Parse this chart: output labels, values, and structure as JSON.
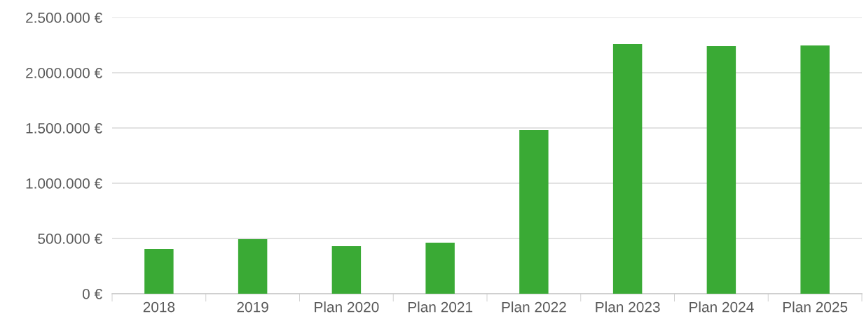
{
  "chart_data": {
    "type": "bar",
    "categories": [
      "2018",
      "2019",
      "Plan 2020",
      "Plan 2021",
      "Plan 2022",
      "Plan 2023",
      "Plan 2024",
      "Plan 2025"
    ],
    "values": [
      405000,
      494000,
      430000,
      462000,
      1481000,
      2259000,
      2241000,
      2247000
    ],
    "color": "#3aaa35",
    "ylim": [
      0,
      2500000
    ],
    "yticks": [
      {
        "value": 0,
        "label": "0 €"
      },
      {
        "value": 500000,
        "label": "500.000 €"
      },
      {
        "value": 1000000,
        "label": "1.000.000 €"
      },
      {
        "value": 1500000,
        "label": "1.500.000 €"
      },
      {
        "value": 2000000,
        "label": "2.000.000 €"
      },
      {
        "value": 2500000,
        "label": "2.500.000 €"
      }
    ],
    "grid": "y"
  }
}
